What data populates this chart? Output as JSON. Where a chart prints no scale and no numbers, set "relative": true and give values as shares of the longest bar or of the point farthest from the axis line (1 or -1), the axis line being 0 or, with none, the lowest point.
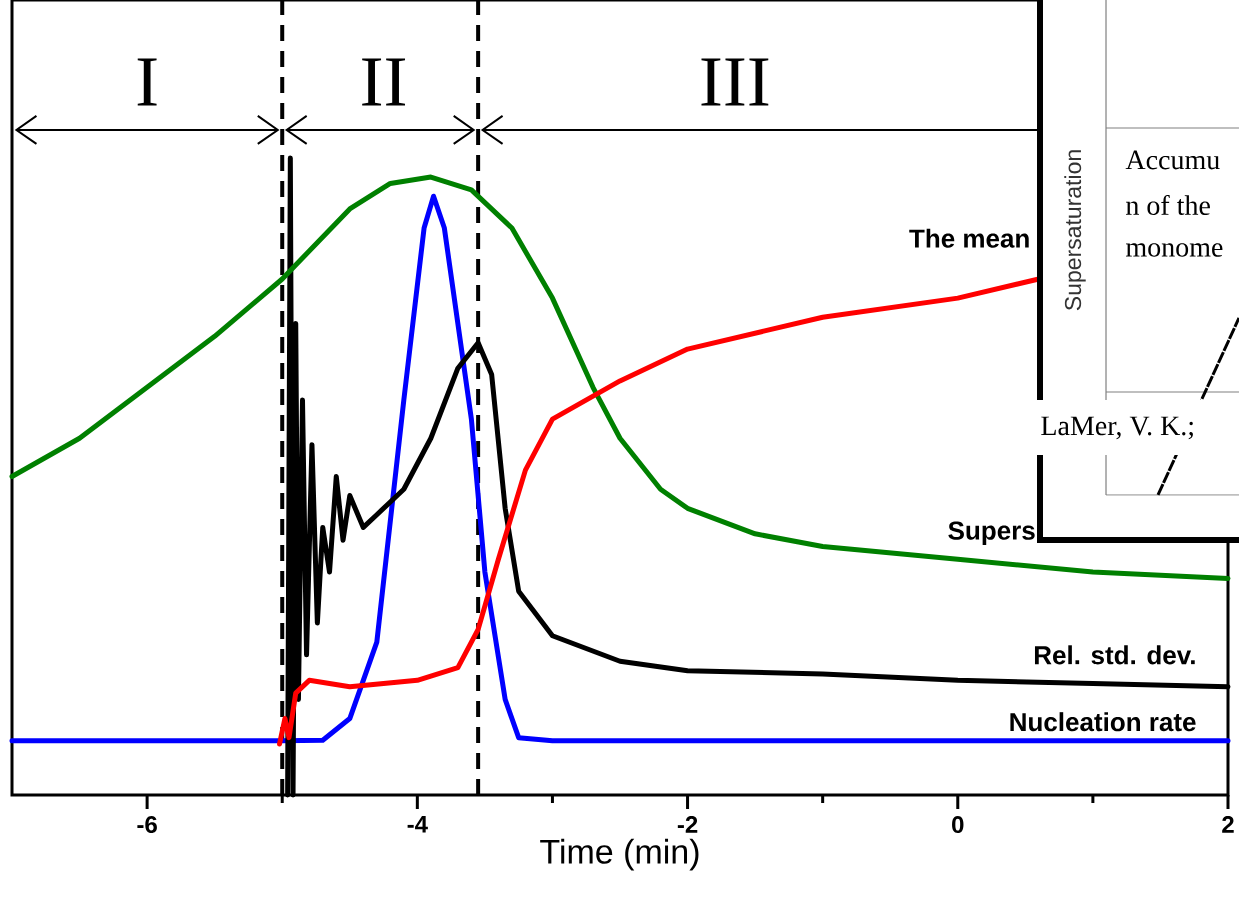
{
  "chart_data": {
    "type": "line",
    "relative": true,
    "xlabel": "Time (min)",
    "xlim": [
      -7,
      2
    ],
    "xticks": [
      -6,
      -4,
      -2,
      0,
      2
    ],
    "marker": "none",
    "series": [
      {
        "name": "Nucleation rate",
        "color": "#0000ff",
        "x": [
          -7,
          -5,
          -4.7,
          -4.5,
          -4.3,
          -4.1,
          -3.95,
          -3.88,
          -3.8,
          -3.6,
          -3.5,
          -3.35,
          -3.25,
          -3,
          2
        ],
        "values": [
          0.085,
          0.085,
          0.086,
          0.12,
          0.24,
          0.62,
          0.89,
          0.94,
          0.89,
          0.59,
          0.35,
          0.15,
          0.09,
          0.085,
          0.085
        ]
      },
      {
        "name": "Rel. std. dev.",
        "color": "#000000",
        "x": [
          -4.96,
          -4.94,
          -4.92,
          -4.9,
          -4.88,
          -4.85,
          -4.82,
          -4.78,
          -4.74,
          -4.7,
          -4.65,
          -4.6,
          -4.55,
          -4.5,
          -4.4,
          -4.3,
          -4.1,
          -3.9,
          -3.7,
          -3.55,
          -3.45,
          -3.35,
          -3.25,
          -3,
          -2.5,
          -2,
          -1,
          0,
          1,
          2
        ],
        "values": [
          0,
          1,
          0,
          0.74,
          0.15,
          0.62,
          0.22,
          0.55,
          0.27,
          0.42,
          0.35,
          0.5,
          0.4,
          0.47,
          0.42,
          0.44,
          0.48,
          0.56,
          0.67,
          0.71,
          0.66,
          0.45,
          0.32,
          0.25,
          0.21,
          0.195,
          0.19,
          0.18,
          0.175,
          0.17
        ]
      },
      {
        "name": "Supers",
        "color": "#008000",
        "x": [
          -7,
          -6.5,
          -6,
          -5.5,
          -5,
          -4.5,
          -4.2,
          -3.9,
          -3.6,
          -3.3,
          -3,
          -2.7,
          -2.5,
          -2.2,
          -2,
          -1.5,
          -1,
          0,
          1,
          2
        ],
        "values": [
          0.5,
          0.56,
          0.64,
          0.72,
          0.81,
          0.92,
          0.96,
          0.97,
          0.95,
          0.89,
          0.78,
          0.64,
          0.56,
          0.48,
          0.45,
          0.41,
          0.39,
          0.37,
          0.35,
          0.34
        ]
      },
      {
        "name": "The mean",
        "color": "#ff0000",
        "x": [
          -5.02,
          -4.98,
          -4.95,
          -4.9,
          -4.8,
          -4.5,
          -4,
          -3.7,
          -3.55,
          -3.4,
          -3.2,
          -3,
          -2.5,
          -2,
          -1,
          0,
          0.6
        ],
        "values": [
          0.08,
          0.12,
          0.09,
          0.16,
          0.18,
          0.17,
          0.18,
          0.2,
          0.26,
          0.37,
          0.51,
          0.59,
          0.65,
          0.7,
          0.75,
          0.78,
          0.81
        ]
      }
    ],
    "ref_lines": [
      {
        "axis": "x",
        "value": -5,
        "line_style": "dashed",
        "color": "#000000"
      },
      {
        "axis": "x",
        "value": -3.55,
        "line_style": "dashed",
        "color": "#000000"
      }
    ],
    "annotations": [
      "I",
      "II",
      "III",
      "Supersaturation",
      "Accumu",
      "n of the",
      "monome",
      "LaMer, V. K.;"
    ]
  }
}
